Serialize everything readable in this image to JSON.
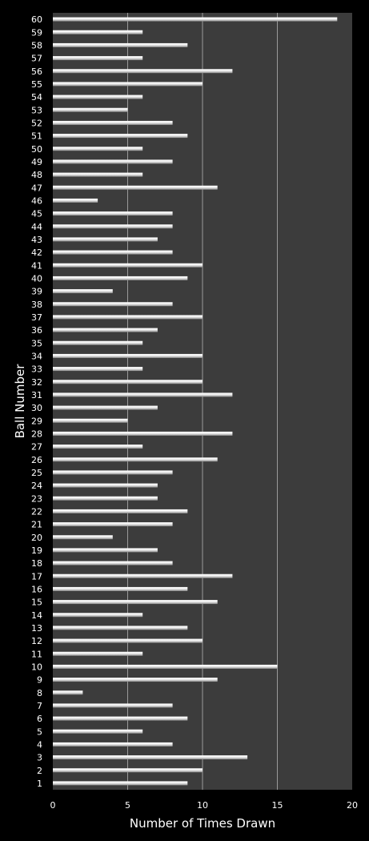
{
  "chart_data": {
    "type": "bar",
    "orientation": "horizontal",
    "title": "",
    "xlabel": "Number of Times Drawn",
    "ylabel": "Ball Number",
    "xlim": [
      0,
      20
    ],
    "xticks": [
      "0",
      "5",
      "10",
      "15",
      "20"
    ],
    "grid": "vertical",
    "legend": "none",
    "colors": {
      "background": "#000000",
      "plot_area": "#3c3c3c",
      "bar": "#e8e8e8",
      "gridline": "#9a9a9a",
      "text": "#ffffff"
    },
    "categories": [
      "1",
      "2",
      "3",
      "4",
      "5",
      "6",
      "7",
      "8",
      "9",
      "10",
      "11",
      "12",
      "13",
      "14",
      "15",
      "16",
      "17",
      "18",
      "19",
      "20",
      "21",
      "22",
      "23",
      "24",
      "25",
      "26",
      "27",
      "28",
      "29",
      "30",
      "31",
      "32",
      "33",
      "34",
      "35",
      "36",
      "37",
      "38",
      "39",
      "40",
      "41",
      "42",
      "43",
      "44",
      "45",
      "46",
      "47",
      "48",
      "49",
      "50",
      "51",
      "52",
      "53",
      "54",
      "55",
      "56",
      "57",
      "58",
      "59",
      "60"
    ],
    "values": [
      9,
      10,
      13,
      8,
      6,
      9,
      8,
      2,
      11,
      15,
      6,
      10,
      9,
      6,
      11,
      9,
      12,
      8,
      7,
      4,
      8,
      9,
      7,
      7,
      8,
      11,
      6,
      12,
      5,
      7,
      12,
      10,
      6,
      10,
      6,
      7,
      10,
      8,
      4,
      9,
      10,
      8,
      7,
      8,
      8,
      3,
      11,
      6,
      8,
      6,
      9,
      8,
      5,
      6,
      10,
      12,
      6,
      9,
      6,
      19
    ]
  }
}
